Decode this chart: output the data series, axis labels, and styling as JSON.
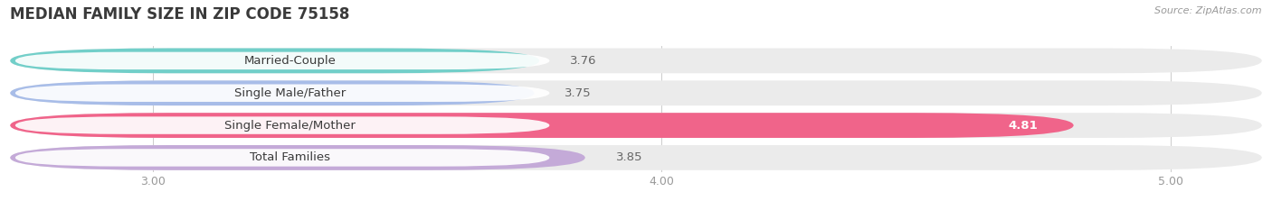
{
  "title": "MEDIAN FAMILY SIZE IN ZIP CODE 75158",
  "source": "Source: ZipAtlas.com",
  "categories": [
    "Married-Couple",
    "Single Male/Father",
    "Single Female/Mother",
    "Total Families"
  ],
  "values": [
    3.76,
    3.75,
    4.81,
    3.85
  ],
  "bar_colors": [
    "#72cfc9",
    "#a8bde8",
    "#f0648a",
    "#c4aad8"
  ],
  "bar_bg_colors": [
    "#ebebeb",
    "#ebebeb",
    "#ebebeb",
    "#ebebeb"
  ],
  "xlim_left": 2.72,
  "xlim_right": 5.18,
  "xticks": [
    3.0,
    4.0,
    5.0
  ],
  "xtick_labels": [
    "3.00",
    "4.00",
    "5.00"
  ],
  "value_fontsize": 9.5,
  "label_fontsize": 9.5,
  "title_fontsize": 12,
  "background_color": "#ffffff"
}
